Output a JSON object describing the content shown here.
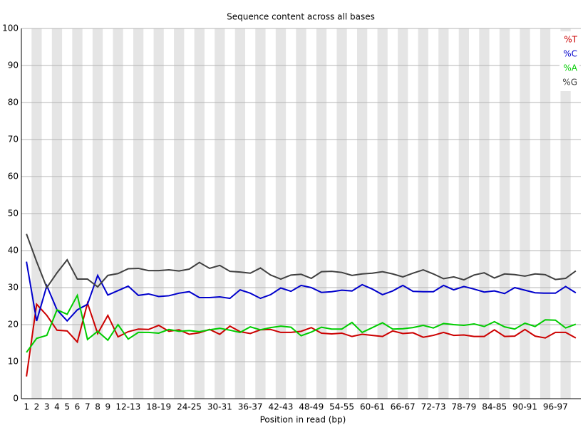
{
  "chart_data": {
    "type": "line",
    "title": "Sequence content across all bases",
    "x_label": "Position in read (bp)",
    "categories": [
      "1",
      "2",
      "3",
      "4",
      "5",
      "6",
      "7",
      "8",
      "9",
      null,
      "12-13",
      null,
      null,
      "18-19",
      null,
      null,
      "24-25",
      null,
      null,
      "30-31",
      null,
      null,
      "36-37",
      null,
      null,
      "42-43",
      null,
      null,
      "48-49",
      null,
      null,
      "54-55",
      null,
      null,
      "60-61",
      null,
      null,
      "66-67",
      null,
      null,
      "72-73",
      null,
      null,
      "78-79",
      null,
      null,
      "84-85",
      null,
      null,
      "90-91",
      null,
      null,
      "96-97",
      null,
      null
    ],
    "series": [
      {
        "name": "%T",
        "color": "#cc0000",
        "values": [
          6,
          25.5,
          22.5,
          18.5,
          18.3,
          15.3,
          25.8,
          17.6,
          22.5,
          16.7,
          18.1,
          18.8,
          18.7,
          19.8,
          18.2,
          18.6,
          17.4,
          17.8,
          18.7,
          17.4,
          19.6,
          18.1,
          17.6,
          18.6,
          18.7,
          17.9,
          17.9,
          18.2,
          19.2,
          17.7,
          17.5,
          17.7,
          16.8,
          17.4,
          17.1,
          16.8,
          18.3,
          17.6,
          17.8,
          16.6,
          17.1,
          17.9,
          17.1,
          17.2,
          16.8,
          16.8,
          18.6,
          16.8,
          16.9,
          18.7,
          16.9,
          16.4,
          17.9,
          17.9,
          16.4
        ]
      },
      {
        "name": "%C",
        "color": "#0000cc",
        "values": [
          37,
          21,
          30.5,
          24,
          21,
          24,
          25.5,
          33.3,
          28,
          29.2,
          30.4,
          27.9,
          28.3,
          27.6,
          27.8,
          28.5,
          28.9,
          27.3,
          27.3,
          27.5,
          27.1,
          29.4,
          28.5,
          27.1,
          28.1,
          29.9,
          29,
          30.6,
          30,
          28.7,
          28.9,
          29.3,
          29.1,
          30.8,
          29.6,
          28.1,
          29.1,
          30.6,
          29,
          28.9,
          28.9,
          30.6,
          29.4,
          30.3,
          29.6,
          28.8,
          29.1,
          28.4,
          30,
          29.3,
          28.6,
          28.5,
          28.5,
          30.3,
          28.6
        ]
      },
      {
        "name": "%A",
        "color": "#00cc00",
        "values": [
          12.5,
          16.3,
          17.1,
          24,
          22.8,
          27.9,
          16,
          18.2,
          15.8,
          20,
          16.1,
          17.9,
          17.9,
          17.7,
          18.7,
          18.2,
          18.4,
          18.1,
          18.6,
          19,
          18.5,
          17.9,
          19.4,
          18.6,
          19.2,
          19.6,
          19.3,
          17,
          18,
          19.3,
          18.8,
          18.8,
          20.6,
          17.9,
          19.2,
          20.5,
          18.8,
          18.9,
          19.2,
          19.8,
          19.1,
          20.3,
          20,
          19.8,
          20.2,
          19.5,
          20.8,
          19.4,
          18.8,
          20.4,
          19.5,
          21.3,
          21.2,
          19.1,
          20.1
        ]
      },
      {
        "name": "%G",
        "color": "#404040",
        "values": [
          44.5,
          37,
          30,
          34,
          37.5,
          32.3,
          32.3,
          30.2,
          33.3,
          33.8,
          35.1,
          35.2,
          34.6,
          34.6,
          34.8,
          34.5,
          35,
          36.8,
          35.2,
          36,
          34.4,
          34.2,
          33.9,
          35.3,
          33.4,
          32.3,
          33.4,
          33.6,
          32.5,
          34.3,
          34.4,
          34.1,
          33.3,
          33.7,
          33.9,
          34.3,
          33.7,
          32.9,
          33.9,
          34.8,
          33.7,
          32.4,
          32.9,
          32.1,
          33.4,
          34,
          32.6,
          33.7,
          33.5,
          33.1,
          33.7,
          33.5,
          32.2,
          32.5,
          34.5
        ]
      }
    ],
    "ylim": [
      0,
      100
    ],
    "yticks": [
      0,
      10,
      20,
      30,
      40,
      50,
      60,
      70,
      80,
      90,
      100
    ],
    "grid": true,
    "legend": "top-right"
  }
}
